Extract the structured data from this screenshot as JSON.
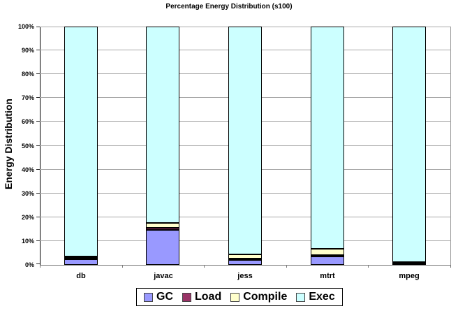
{
  "chart_data": {
    "type": "bar",
    "stacked": true,
    "title": "Percentage Energy Distribution (s100)",
    "ylabel": "Energy Distribution",
    "xlabel": "",
    "categories": [
      "db",
      "javac",
      "jess",
      "mtrt",
      "mpeg"
    ],
    "series": [
      {
        "name": "GC",
        "color": "#9999FF",
        "values": [
          2.3,
          14.7,
          2.1,
          3.4,
          0.3
        ]
      },
      {
        "name": "Load",
        "color": "#993366",
        "values": [
          0.6,
          0.7,
          0.6,
          0.6,
          0.3
        ]
      },
      {
        "name": "Compile",
        "color": "#FFFFCC",
        "values": [
          0.6,
          2.1,
          1.8,
          2.6,
          0.6
        ]
      },
      {
        "name": "Exec",
        "color": "#CCFFFF",
        "values": [
          96.5,
          82.5,
          95.5,
          93.4,
          98.8
        ]
      }
    ],
    "ylim": [
      0,
      100
    ],
    "ytick_step": 10,
    "ytick_labels": [
      "0%",
      "10%",
      "20%",
      "30%",
      "40%",
      "50%",
      "60%",
      "70%",
      "80%",
      "90%",
      "100%"
    ],
    "grid": true,
    "legend_position": "bottom",
    "colors": {
      "background": "#FFFFFF",
      "gridline": "#A8A8A8",
      "axis": "#000000",
      "bar_border": "#000000"
    }
  }
}
